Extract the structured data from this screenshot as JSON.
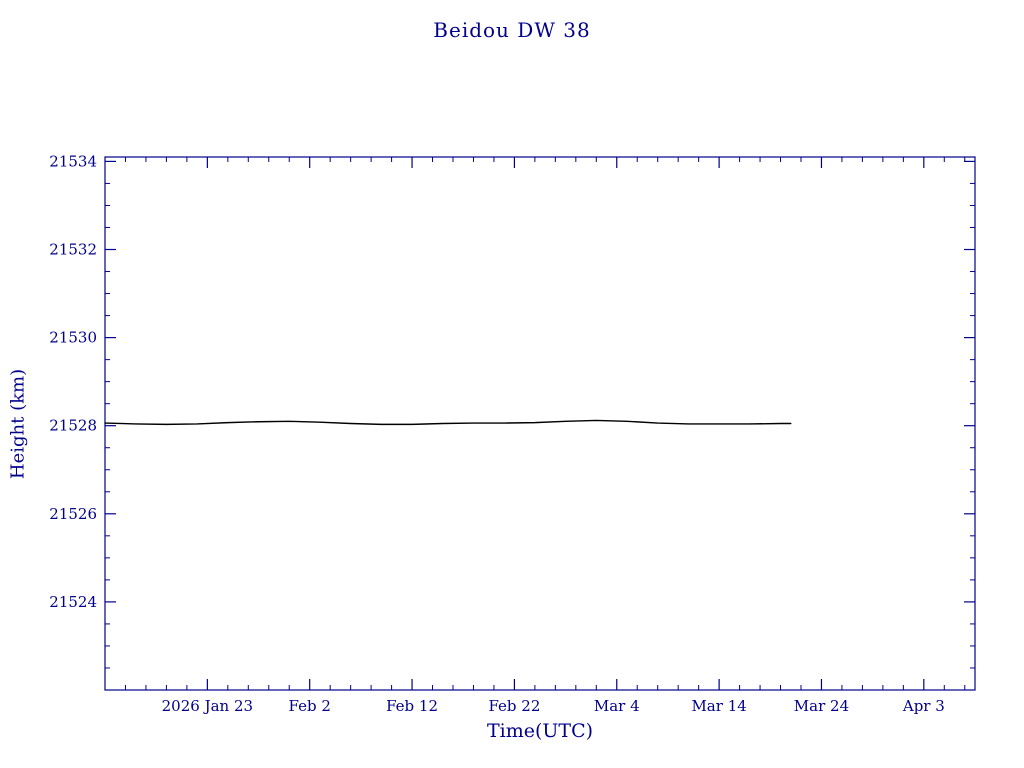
{
  "page": {
    "background": "#ffffff"
  },
  "chart_data": {
    "type": "line",
    "title": "Beidou DW 38",
    "xlabel": "Time(UTC)",
    "ylabel": "Height (km)",
    "axis_color": "#00008b",
    "line_color": "#000000",
    "grid": false,
    "legend": "none",
    "x_unit": "days since 2026 Jan 23",
    "xlim": [
      -10,
      75
    ],
    "ylim": [
      21522.0,
      21534.1
    ],
    "x_ticks": [
      {
        "day": 0,
        "label": "2026 Jan 23"
      },
      {
        "day": 10,
        "label": "Feb  2"
      },
      {
        "day": 20,
        "label": "Feb 12"
      },
      {
        "day": 30,
        "label": "Feb 22"
      },
      {
        "day": 40,
        "label": "Mar  4"
      },
      {
        "day": 50,
        "label": "Mar 14"
      },
      {
        "day": 60,
        "label": "Mar 24"
      },
      {
        "day": 70,
        "label": "Apr  3"
      }
    ],
    "x_minor_step": 2,
    "y_ticks": [
      {
        "value": 21524,
        "label": "21524"
      },
      {
        "value": 21526,
        "label": "21526"
      },
      {
        "value": 21528,
        "label": "21528"
      },
      {
        "value": 21530,
        "label": "21530"
      },
      {
        "value": 21532,
        "label": "21532"
      },
      {
        "value": 21534,
        "label": "21534"
      }
    ],
    "y_minor_step": 0.5,
    "series": [
      {
        "name": "height",
        "points": [
          [
            -10,
            21528.06
          ],
          [
            -7,
            21528.04
          ],
          [
            -4,
            21528.03
          ],
          [
            -1,
            21528.04
          ],
          [
            2,
            21528.07
          ],
          [
            5,
            21528.09
          ],
          [
            8,
            21528.1
          ],
          [
            11,
            21528.08
          ],
          [
            14,
            21528.05
          ],
          [
            17,
            21528.03
          ],
          [
            20,
            21528.03
          ],
          [
            23,
            21528.05
          ],
          [
            26,
            21528.06
          ],
          [
            29,
            21528.06
          ],
          [
            32,
            21528.07
          ],
          [
            35,
            21528.1
          ],
          [
            38,
            21528.12
          ],
          [
            41,
            21528.1
          ],
          [
            44,
            21528.06
          ],
          [
            47,
            21528.04
          ],
          [
            50,
            21528.04
          ],
          [
            53,
            21528.04
          ],
          [
            56,
            21528.05
          ],
          [
            57,
            21528.05
          ]
        ]
      }
    ]
  }
}
